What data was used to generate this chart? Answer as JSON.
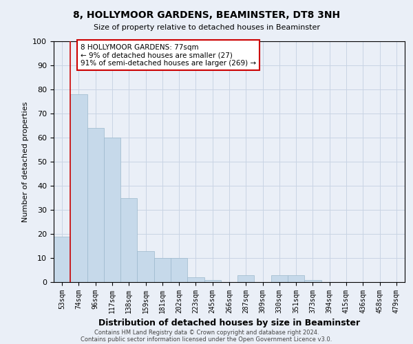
{
  "title": "8, HOLLYMOOR GARDENS, BEAMINSTER, DT8 3NH",
  "subtitle": "Size of property relative to detached houses in Beaminster",
  "xlabel": "Distribution of detached houses by size in Beaminster",
  "ylabel": "Number of detached properties",
  "footnote1": "Contains HM Land Registry data © Crown copyright and database right 2024.",
  "footnote2": "Contains public sector information licensed under the Open Government Licence v3.0.",
  "bar_labels": [
    "53sqm",
    "74sqm",
    "96sqm",
    "117sqm",
    "138sqm",
    "159sqm",
    "181sqm",
    "202sqm",
    "223sqm",
    "245sqm",
    "266sqm",
    "287sqm",
    "309sqm",
    "330sqm",
    "351sqm",
    "373sqm",
    "394sqm",
    "415sqm",
    "436sqm",
    "458sqm",
    "479sqm"
  ],
  "bar_values": [
    19,
    78,
    64,
    60,
    35,
    13,
    10,
    10,
    2,
    1,
    0,
    3,
    0,
    3,
    3,
    1,
    0,
    0,
    0,
    0,
    0
  ],
  "bar_color": "#c6d9ea",
  "bar_edge_color": "#9bb8cc",
  "vline_index": 1,
  "vline_color": "#cc0000",
  "annotation_text": "8 HOLLYMOOR GARDENS: 77sqm\n← 9% of detached houses are smaller (27)\n91% of semi-detached houses are larger (269) →",
  "annotation_box_facecolor": "#ffffff",
  "annotation_box_edgecolor": "#cc0000",
  "ylim": [
    0,
    100
  ],
  "yticks": [
    0,
    10,
    20,
    30,
    40,
    50,
    60,
    70,
    80,
    90,
    100
  ],
  "grid_color": "#c8d4e4",
  "background_color": "#eaeff7",
  "plot_bg_color": "#eaeff7"
}
